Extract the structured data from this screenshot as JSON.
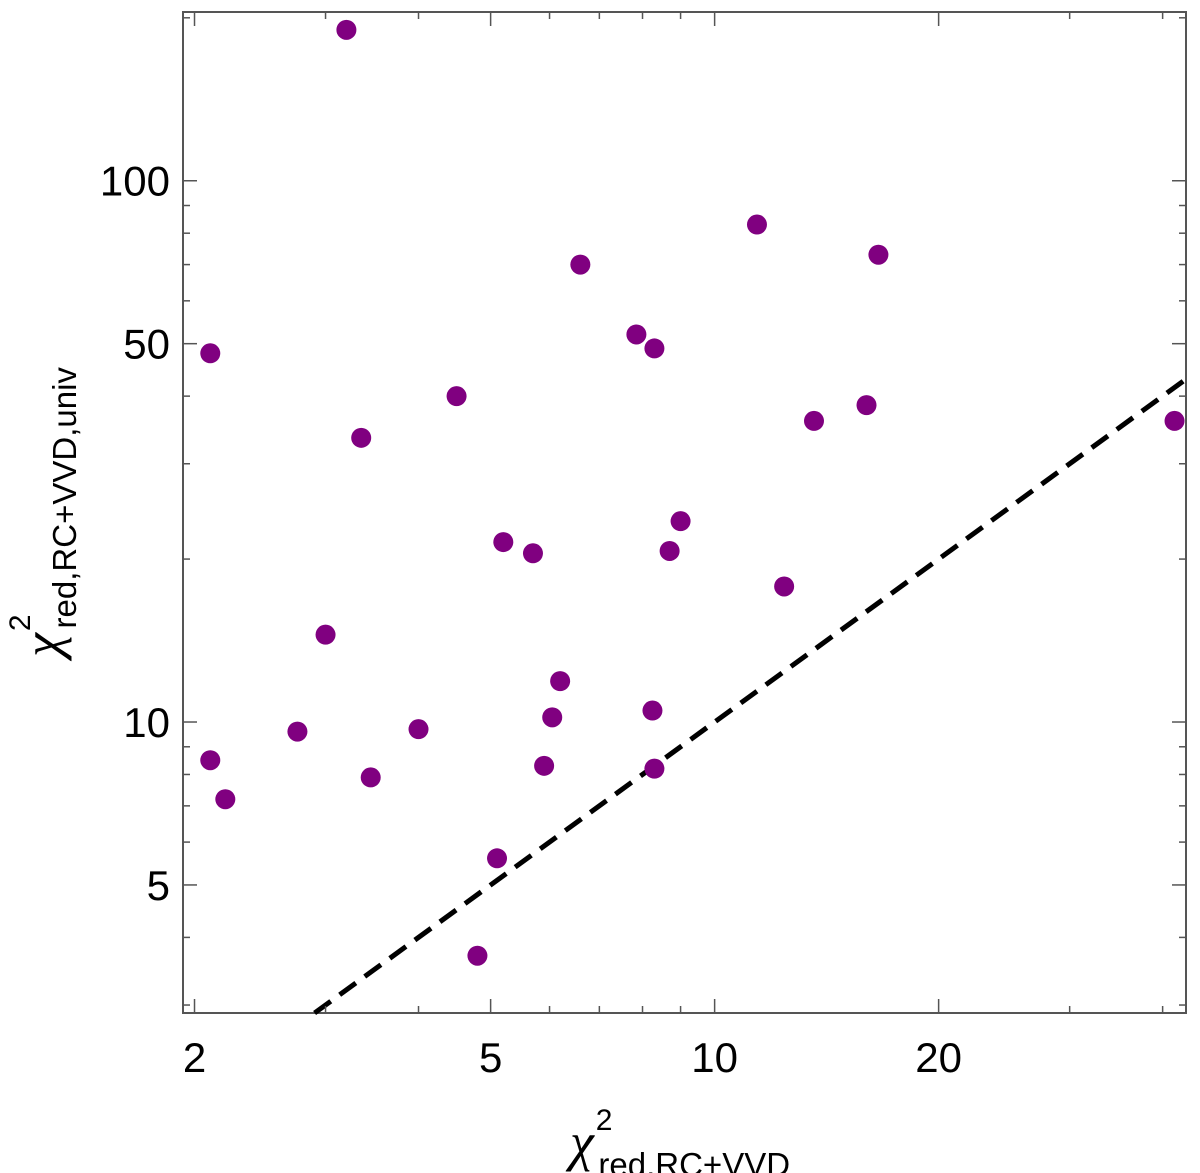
{
  "chart_data": {
    "type": "scatter",
    "xlabel_main": "χ",
    "xlabel_sup": "2",
    "xlabel_sub": "red,RC+VVD",
    "ylabel_main": "χ",
    "ylabel_sup": "2",
    "ylabel_sub": "red,RC+VVD,univ",
    "x_scale": "log",
    "y_scale": "log",
    "xlim": [
      1.93,
      43
    ],
    "ylim": [
      2.9,
      205
    ],
    "x_ticks": [
      2,
      5,
      10,
      20
    ],
    "x_tick_labels": [
      "2",
      "5",
      "10",
      "20"
    ],
    "y_ticks": [
      5,
      10,
      50,
      100
    ],
    "y_tick_labels": [
      "5",
      "10",
      "50",
      "100"
    ],
    "grid": false,
    "marker_color": "#800080",
    "reference_line": {
      "style": "dashed",
      "color": "#000000",
      "relation": "y = x"
    },
    "points": [
      {
        "x": 3.2,
        "y": 190
      },
      {
        "x": 2.1,
        "y": 48
      },
      {
        "x": 2.1,
        "y": 8.5
      },
      {
        "x": 2.2,
        "y": 7.2
      },
      {
        "x": 2.75,
        "y": 9.6
      },
      {
        "x": 3.0,
        "y": 14.5
      },
      {
        "x": 3.35,
        "y": 33.5
      },
      {
        "x": 3.45,
        "y": 7.9
      },
      {
        "x": 4.0,
        "y": 9.7
      },
      {
        "x": 4.5,
        "y": 40
      },
      {
        "x": 4.8,
        "y": 3.7
      },
      {
        "x": 5.1,
        "y": 5.6
      },
      {
        "x": 5.2,
        "y": 21.5
      },
      {
        "x": 5.7,
        "y": 20.5
      },
      {
        "x": 5.9,
        "y": 8.3
      },
      {
        "x": 6.05,
        "y": 10.2
      },
      {
        "x": 6.2,
        "y": 11.9
      },
      {
        "x": 6.6,
        "y": 70
      },
      {
        "x": 7.85,
        "y": 52
      },
      {
        "x": 8.25,
        "y": 10.5
      },
      {
        "x": 8.3,
        "y": 8.2
      },
      {
        "x": 8.3,
        "y": 49
      },
      {
        "x": 8.7,
        "y": 20.7
      },
      {
        "x": 9.0,
        "y": 23.5
      },
      {
        "x": 11.4,
        "y": 83
      },
      {
        "x": 12.4,
        "y": 17.8
      },
      {
        "x": 13.6,
        "y": 36
      },
      {
        "x": 16.0,
        "y": 38.5
      },
      {
        "x": 16.6,
        "y": 73
      },
      {
        "x": 41.5,
        "y": 36
      }
    ]
  }
}
